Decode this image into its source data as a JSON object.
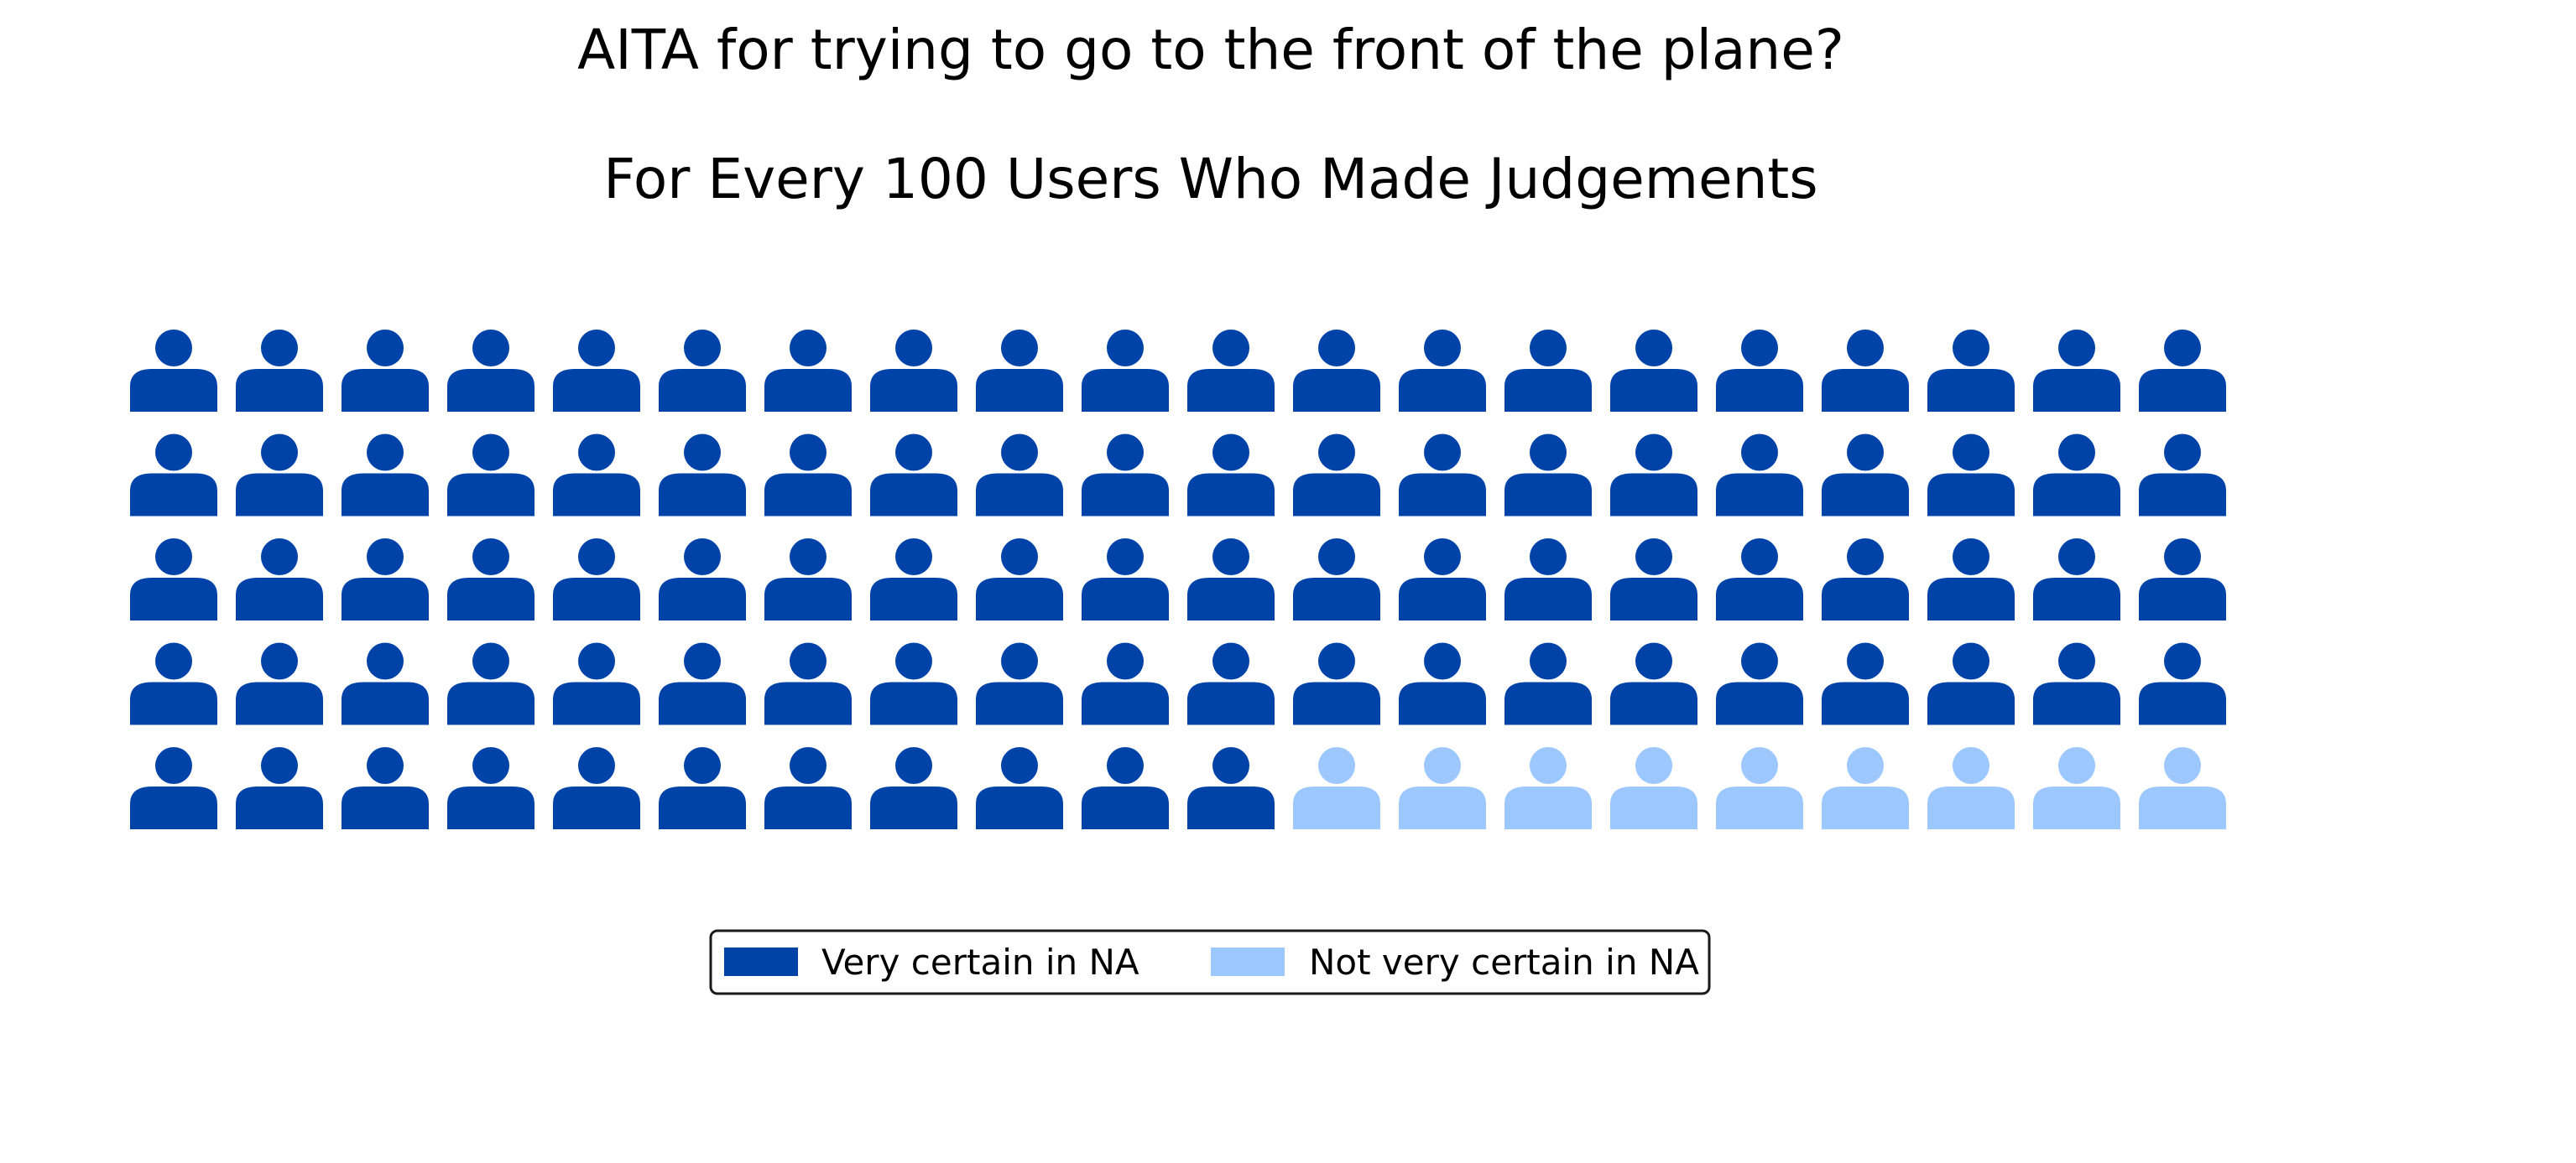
{
  "chart_data": {
    "type": "waffle",
    "title": "AITA for trying to go to the front of the plane?",
    "subtitle": "For Every 100 Users Who Made Judgements",
    "rows": 5,
    "columns": 20,
    "total": 100,
    "icon": "person-icon",
    "series": [
      {
        "name": "Very certain in NA",
        "value": 91,
        "color": "#0043A8"
      },
      {
        "name": "Not very certain in NA",
        "value": 9,
        "color": "#9DC8FF"
      }
    ],
    "legend": {
      "position": "bottom-center",
      "frame": true,
      "columns": 2
    }
  }
}
